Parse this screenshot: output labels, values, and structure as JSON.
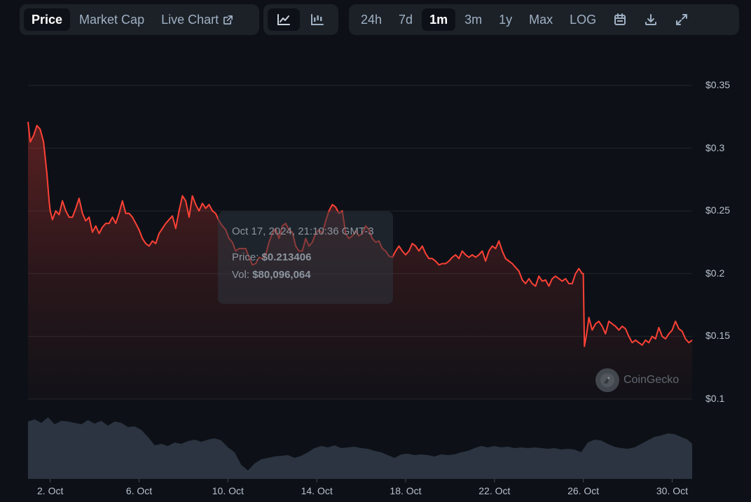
{
  "toolbar": {
    "tabs": [
      "Price",
      "Market Cap",
      "Live Chart"
    ],
    "active_tab": "Price",
    "chart_types": [
      "line-chart-icon",
      "candlestick-icon"
    ],
    "ranges": [
      "24h",
      "7d",
      "1m",
      "3m",
      "1y",
      "Max",
      "LOG"
    ],
    "active_range": "1m",
    "tools": [
      "calendar-icon",
      "download-icon",
      "fullscreen-icon"
    ]
  },
  "tooltip": {
    "date": "Oct 17, 2024, 21:10:36 GMT-3",
    "price_label": "Price:",
    "price_value": "$0.213406",
    "vol_label": "Vol:",
    "vol_value": "$80,096,064"
  },
  "watermark": "CoinGecko",
  "colors": {
    "background": "#0d1117",
    "price_line": "#ff4136",
    "volume_fill": "#2b3440",
    "grid": "#21262d"
  },
  "chart_data": {
    "type": "line",
    "title": "",
    "xlabel": "",
    "ylabel": "",
    "y_ticks": [
      "$0.35",
      "$0.3",
      "$0.25",
      "$0.2",
      "$0.15",
      "$0.1"
    ],
    "ylim": [
      0.1,
      0.35
    ],
    "x_ticks": [
      "2. Oct",
      "6. Oct",
      "10. Oct",
      "14. Oct",
      "18. Oct",
      "22. Oct",
      "26. Oct",
      "30. Oct"
    ],
    "x_tick_days": [
      2,
      6,
      10,
      14,
      18,
      22,
      26,
      30
    ],
    "x_range_days": [
      1,
      30.9
    ],
    "grid": true,
    "series": [
      {
        "values": [
          [
            1.0,
            0.321
          ],
          [
            1.1,
            0.305
          ],
          [
            1.25,
            0.31
          ],
          [
            1.4,
            0.318
          ],
          [
            1.55,
            0.315
          ],
          [
            1.7,
            0.305
          ],
          [
            1.85,
            0.28
          ],
          [
            1.95,
            0.258
          ],
          [
            2.0,
            0.25
          ],
          [
            2.1,
            0.243
          ],
          [
            2.25,
            0.25
          ],
          [
            2.4,
            0.247
          ],
          [
            2.55,
            0.258
          ],
          [
            2.7,
            0.25
          ],
          [
            2.85,
            0.245
          ],
          [
            3.0,
            0.245
          ],
          [
            3.15,
            0.252
          ],
          [
            3.3,
            0.26
          ],
          [
            3.45,
            0.248
          ],
          [
            3.6,
            0.242
          ],
          [
            3.75,
            0.245
          ],
          [
            3.9,
            0.233
          ],
          [
            4.05,
            0.238
          ],
          [
            4.2,
            0.232
          ],
          [
            4.35,
            0.237
          ],
          [
            4.5,
            0.24
          ],
          [
            4.65,
            0.24
          ],
          [
            4.8,
            0.245
          ],
          [
            4.95,
            0.24
          ],
          [
            5.1,
            0.248
          ],
          [
            5.25,
            0.258
          ],
          [
            5.4,
            0.248
          ],
          [
            5.55,
            0.248
          ],
          [
            5.7,
            0.245
          ],
          [
            5.85,
            0.24
          ],
          [
            6.0,
            0.235
          ],
          [
            6.15,
            0.228
          ],
          [
            6.3,
            0.224
          ],
          [
            6.45,
            0.222
          ],
          [
            6.6,
            0.226
          ],
          [
            6.75,
            0.224
          ],
          [
            6.9,
            0.232
          ],
          [
            7.05,
            0.236
          ],
          [
            7.2,
            0.24
          ],
          [
            7.35,
            0.243
          ],
          [
            7.5,
            0.246
          ],
          [
            7.65,
            0.236
          ],
          [
            7.8,
            0.25
          ],
          [
            7.95,
            0.262
          ],
          [
            8.1,
            0.258
          ],
          [
            8.25,
            0.245
          ],
          [
            8.4,
            0.262
          ],
          [
            8.55,
            0.255
          ],
          [
            8.7,
            0.25
          ],
          [
            8.85,
            0.256
          ],
          [
            9.0,
            0.252
          ],
          [
            9.15,
            0.255
          ],
          [
            9.3,
            0.25
          ],
          [
            9.45,
            0.248
          ],
          [
            9.6,
            0.242
          ],
          [
            9.75,
            0.238
          ],
          [
            9.9,
            0.235
          ],
          [
            10.05,
            0.228
          ],
          [
            10.2,
            0.225
          ],
          [
            10.35,
            0.218
          ],
          [
            10.5,
            0.22
          ],
          [
            10.65,
            0.22
          ],
          [
            10.8,
            0.22
          ],
          [
            10.95,
            0.213
          ],
          [
            11.1,
            0.207
          ],
          [
            11.25,
            0.208
          ],
          [
            11.4,
            0.213
          ],
          [
            11.55,
            0.212
          ],
          [
            11.7,
            0.215
          ],
          [
            11.85,
            0.225
          ],
          [
            12.0,
            0.232
          ],
          [
            12.15,
            0.236
          ],
          [
            12.3,
            0.228
          ],
          [
            12.45,
            0.238
          ],
          [
            12.6,
            0.24
          ],
          [
            12.75,
            0.235
          ],
          [
            12.9,
            0.233
          ],
          [
            13.05,
            0.222
          ],
          [
            13.2,
            0.218
          ],
          [
            13.35,
            0.218
          ],
          [
            13.5,
            0.228
          ],
          [
            13.65,
            0.222
          ],
          [
            13.8,
            0.225
          ],
          [
            13.95,
            0.232
          ],
          [
            14.1,
            0.235
          ],
          [
            14.25,
            0.232
          ],
          [
            14.4,
            0.242
          ],
          [
            14.55,
            0.25
          ],
          [
            14.7,
            0.255
          ],
          [
            14.85,
            0.253
          ],
          [
            15.0,
            0.248
          ],
          [
            15.15,
            0.25
          ],
          [
            15.3,
            0.232
          ],
          [
            15.45,
            0.228
          ],
          [
            15.6,
            0.23
          ],
          [
            15.75,
            0.234
          ],
          [
            15.9,
            0.23
          ],
          [
            16.05,
            0.232
          ],
          [
            16.2,
            0.238
          ],
          [
            16.35,
            0.235
          ],
          [
            16.5,
            0.228
          ],
          [
            16.65,
            0.225
          ],
          [
            16.8,
            0.226
          ],
          [
            16.95,
            0.22
          ],
          [
            17.1,
            0.218
          ],
          [
            17.25,
            0.214
          ],
          [
            17.4,
            0.213
          ],
          [
            17.55,
            0.218
          ],
          [
            17.7,
            0.222
          ],
          [
            17.85,
            0.218
          ],
          [
            18.0,
            0.215
          ],
          [
            18.15,
            0.218
          ],
          [
            18.3,
            0.224
          ],
          [
            18.45,
            0.222
          ],
          [
            18.6,
            0.218
          ],
          [
            18.75,
            0.222
          ],
          [
            18.9,
            0.216
          ],
          [
            19.05,
            0.212
          ],
          [
            19.2,
            0.212
          ],
          [
            19.35,
            0.21
          ],
          [
            19.5,
            0.207
          ],
          [
            19.65,
            0.208
          ],
          [
            19.8,
            0.208
          ],
          [
            19.95,
            0.21
          ],
          [
            20.1,
            0.213
          ],
          [
            20.25,
            0.215
          ],
          [
            20.4,
            0.212
          ],
          [
            20.55,
            0.218
          ],
          [
            20.7,
            0.215
          ],
          [
            20.85,
            0.213
          ],
          [
            21.0,
            0.215
          ],
          [
            21.15,
            0.213
          ],
          [
            21.3,
            0.215
          ],
          [
            21.45,
            0.218
          ],
          [
            21.6,
            0.21
          ],
          [
            21.75,
            0.218
          ],
          [
            21.9,
            0.222
          ],
          [
            22.05,
            0.22
          ],
          [
            22.2,
            0.226
          ],
          [
            22.35,
            0.218
          ],
          [
            22.5,
            0.212
          ],
          [
            22.65,
            0.21
          ],
          [
            22.8,
            0.208
          ],
          [
            22.95,
            0.205
          ],
          [
            23.1,
            0.202
          ],
          [
            23.25,
            0.195
          ],
          [
            23.4,
            0.192
          ],
          [
            23.55,
            0.196
          ],
          [
            23.7,
            0.192
          ],
          [
            23.85,
            0.19
          ],
          [
            24.0,
            0.198
          ],
          [
            24.15,
            0.194
          ],
          [
            24.3,
            0.195
          ],
          [
            24.45,
            0.19
          ],
          [
            24.6,
            0.196
          ],
          [
            24.75,
            0.198
          ],
          [
            24.9,
            0.196
          ],
          [
            25.05,
            0.194
          ],
          [
            25.2,
            0.196
          ],
          [
            25.35,
            0.192
          ],
          [
            25.5,
            0.192
          ],
          [
            25.65,
            0.2
          ],
          [
            25.8,
            0.204
          ],
          [
            25.95,
            0.2
          ],
          [
            26.0,
            0.2
          ],
          [
            26.05,
            0.142
          ],
          [
            26.15,
            0.152
          ],
          [
            26.25,
            0.165
          ],
          [
            26.4,
            0.155
          ],
          [
            26.55,
            0.16
          ],
          [
            26.7,
            0.162
          ],
          [
            26.85,
            0.158
          ],
          [
            27.0,
            0.152
          ],
          [
            27.15,
            0.162
          ],
          [
            27.3,
            0.16
          ],
          [
            27.45,
            0.158
          ],
          [
            27.6,
            0.155
          ],
          [
            27.75,
            0.158
          ],
          [
            27.9,
            0.156
          ],
          [
            28.05,
            0.15
          ],
          [
            28.2,
            0.145
          ],
          [
            28.35,
            0.147
          ],
          [
            28.5,
            0.145
          ],
          [
            28.65,
            0.143
          ],
          [
            28.8,
            0.147
          ],
          [
            28.95,
            0.145
          ],
          [
            29.1,
            0.15
          ],
          [
            29.25,
            0.148
          ],
          [
            29.4,
            0.157
          ],
          [
            29.55,
            0.15
          ],
          [
            29.7,
            0.148
          ],
          [
            29.85,
            0.152
          ],
          [
            30.0,
            0.155
          ],
          [
            30.15,
            0.162
          ],
          [
            30.3,
            0.156
          ],
          [
            30.45,
            0.154
          ],
          [
            30.6,
            0.148
          ],
          [
            30.75,
            0.145
          ],
          [
            30.9,
            0.147
          ]
        ]
      }
    ],
    "volume": {
      "values": [
        [
          1.0,
          0.82
        ],
        [
          1.3,
          0.85
        ],
        [
          1.6,
          0.8
        ],
        [
          1.9,
          0.88
        ],
        [
          2.2,
          0.78
        ],
        [
          2.5,
          0.83
        ],
        [
          2.8,
          0.82
        ],
        [
          3.1,
          0.8
        ],
        [
          3.4,
          0.78
        ],
        [
          3.7,
          0.84
        ],
        [
          4.0,
          0.79
        ],
        [
          4.3,
          0.83
        ],
        [
          4.6,
          0.76
        ],
        [
          4.9,
          0.82
        ],
        [
          5.2,
          0.8
        ],
        [
          5.5,
          0.74
        ],
        [
          5.8,
          0.75
        ],
        [
          6.1,
          0.7
        ],
        [
          6.4,
          0.6
        ],
        [
          6.7,
          0.48
        ],
        [
          7.0,
          0.5
        ],
        [
          7.3,
          0.47
        ],
        [
          7.6,
          0.52
        ],
        [
          7.9,
          0.5
        ],
        [
          8.2,
          0.54
        ],
        [
          8.5,
          0.56
        ],
        [
          8.8,
          0.53
        ],
        [
          9.1,
          0.56
        ],
        [
          9.4,
          0.58
        ],
        [
          9.7,
          0.55
        ],
        [
          10.0,
          0.45
        ],
        [
          10.3,
          0.38
        ],
        [
          10.6,
          0.2
        ],
        [
          10.9,
          0.12
        ],
        [
          11.2,
          0.22
        ],
        [
          11.5,
          0.28
        ],
        [
          11.8,
          0.3
        ],
        [
          12.1,
          0.32
        ],
        [
          12.4,
          0.33
        ],
        [
          12.7,
          0.34
        ],
        [
          13.0,
          0.3
        ],
        [
          13.3,
          0.33
        ],
        [
          13.6,
          0.38
        ],
        [
          13.9,
          0.44
        ],
        [
          14.2,
          0.47
        ],
        [
          14.5,
          0.45
        ],
        [
          14.8,
          0.48
        ],
        [
          15.1,
          0.44
        ],
        [
          15.4,
          0.45
        ],
        [
          15.7,
          0.46
        ],
        [
          16.0,
          0.44
        ],
        [
          16.3,
          0.43
        ],
        [
          16.6,
          0.4
        ],
        [
          16.9,
          0.38
        ],
        [
          17.2,
          0.34
        ],
        [
          17.5,
          0.3
        ],
        [
          17.8,
          0.35
        ],
        [
          18.1,
          0.36
        ],
        [
          18.4,
          0.34
        ],
        [
          18.7,
          0.35
        ],
        [
          19.0,
          0.34
        ],
        [
          19.3,
          0.32
        ],
        [
          19.6,
          0.35
        ],
        [
          19.9,
          0.34
        ],
        [
          20.2,
          0.35
        ],
        [
          20.5,
          0.38
        ],
        [
          20.8,
          0.4
        ],
        [
          21.1,
          0.44
        ],
        [
          21.4,
          0.47
        ],
        [
          21.7,
          0.45
        ],
        [
          22.0,
          0.47
        ],
        [
          22.3,
          0.45
        ],
        [
          22.6,
          0.46
        ],
        [
          22.9,
          0.44
        ],
        [
          23.2,
          0.45
        ],
        [
          23.5,
          0.44
        ],
        [
          23.8,
          0.45
        ],
        [
          24.1,
          0.44
        ],
        [
          24.4,
          0.43
        ],
        [
          24.7,
          0.44
        ],
        [
          25.0,
          0.42
        ],
        [
          25.3,
          0.43
        ],
        [
          25.6,
          0.42
        ],
        [
          25.9,
          0.38
        ],
        [
          26.2,
          0.52
        ],
        [
          26.5,
          0.56
        ],
        [
          26.8,
          0.55
        ],
        [
          27.1,
          0.5
        ],
        [
          27.4,
          0.46
        ],
        [
          27.7,
          0.44
        ],
        [
          28.0,
          0.43
        ],
        [
          28.3,
          0.45
        ],
        [
          28.6,
          0.5
        ],
        [
          28.9,
          0.55
        ],
        [
          29.2,
          0.6
        ],
        [
          29.5,
          0.62
        ],
        [
          29.8,
          0.65
        ],
        [
          30.1,
          0.64
        ],
        [
          30.4,
          0.6
        ],
        [
          30.7,
          0.56
        ],
        [
          30.9,
          0.5
        ]
      ]
    }
  }
}
